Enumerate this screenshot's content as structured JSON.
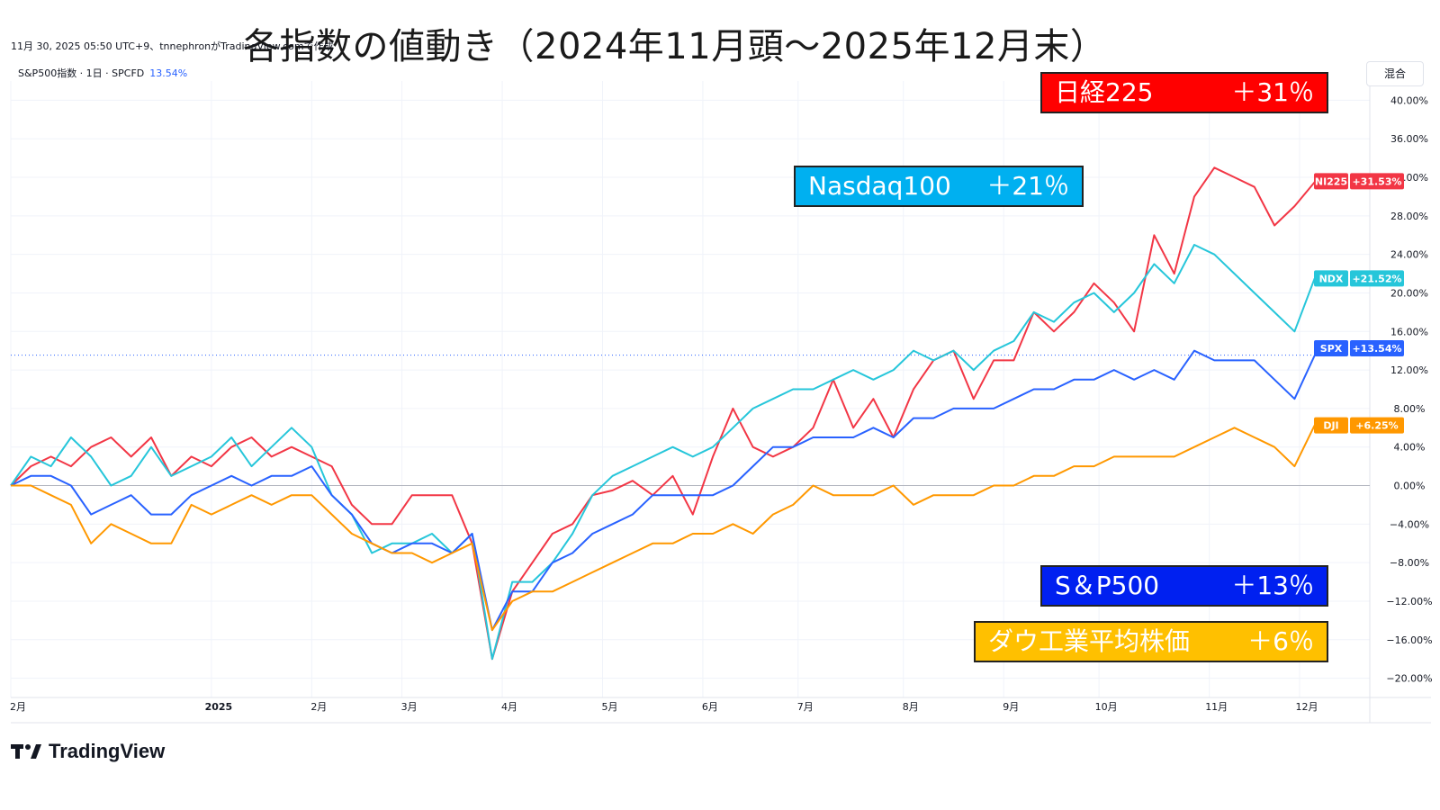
{
  "title": "各指数の値動き（2024年11月頭〜2025年12月末）",
  "meta": "11月 30, 2025 05:50 UTC+9、tnnephronがTradingView.comで作成",
  "legend": {
    "symbol": "S&P500指数 · 1日 · SPCFD",
    "value": "13.54%"
  },
  "mode_button": "混合",
  "callouts": {
    "nikkei": {
      "name": "日経225",
      "change": "＋31％",
      "bg": "#ff0000",
      "fg": "#ffffff"
    },
    "nasdaq": {
      "name": "Nasdaq100",
      "change": "＋21％",
      "bg": "#00b0f0",
      "fg": "#ffffff"
    },
    "sp500": {
      "name": "S＆P500",
      "change": "＋13％",
      "bg": "#0020f0",
      "fg": "#ffffff"
    },
    "dow": {
      "name": "ダウ工業平均株価",
      "change": "＋6％",
      "bg": "#ffc000",
      "fg": "#ffffff"
    }
  },
  "branding": "TradingView",
  "chart_data": {
    "type": "line",
    "y_unit": "%",
    "ylim": [
      -22,
      42
    ],
    "y_ticks": [
      "40.00%",
      "36.00%",
      "32.00%",
      "28.00%",
      "24.00%",
      "20.00%",
      "16.00%",
      "12.00%",
      "8.00%",
      "4.00%",
      "0.00%",
      "−4.00%",
      "−8.00%",
      "−12.00%",
      "−16.00%",
      "−20.00%"
    ],
    "x_ticks": [
      {
        "label": "2月",
        "m": 0.0
      },
      {
        "label": "2025",
        "m": 2.0
      },
      {
        "label": "2月",
        "m": 3.0
      },
      {
        "label": "3月",
        "m": 3.9
      },
      {
        "label": "4月",
        "m": 4.9
      },
      {
        "label": "5月",
        "m": 5.9
      },
      {
        "label": "6月",
        "m": 6.9
      },
      {
        "label": "7月",
        "m": 7.85
      },
      {
        "label": "8月",
        "m": 8.9
      },
      {
        "label": "9月",
        "m": 9.9
      },
      {
        "label": "10月",
        "m": 10.85
      },
      {
        "label": "11月",
        "m": 11.95
      },
      {
        "label": "12月",
        "m": 12.85
      }
    ],
    "xlim": [
      0,
      13.55
    ],
    "grid": true,
    "reference_line": 13.54,
    "series": [
      {
        "name": "NI225",
        "color": "#f23645",
        "last_label": "+31.53%",
        "x": [
          0,
          0.2,
          0.4,
          0.6,
          0.8,
          1.0,
          1.2,
          1.4,
          1.6,
          1.8,
          2.0,
          2.2,
          2.4,
          2.6,
          2.8,
          3.0,
          3.2,
          3.4,
          3.6,
          3.8,
          4.0,
          4.2,
          4.4,
          4.6,
          4.8,
          5.0,
          5.2,
          5.4,
          5.6,
          5.8,
          6.0,
          6.2,
          6.4,
          6.6,
          6.8,
          7.0,
          7.2,
          7.4,
          7.6,
          7.8,
          8.0,
          8.2,
          8.4,
          8.6,
          8.8,
          9.0,
          9.2,
          9.4,
          9.6,
          9.8,
          10.0,
          10.2,
          10.4,
          10.6,
          10.8,
          11.0,
          11.2,
          11.4,
          11.6,
          11.8,
          12.0,
          12.2,
          12.4,
          12.6,
          12.8,
          13.0
        ],
        "y": [
          0,
          2,
          3,
          2,
          4,
          5,
          3,
          5,
          1,
          3,
          2,
          4,
          5,
          3,
          4,
          3,
          2,
          -2,
          -4,
          -4,
          -1,
          -1,
          -1,
          -6,
          -18,
          -11,
          -8,
          -5,
          -4,
          -1,
          -0.5,
          0.5,
          -1,
          1,
          -3,
          3,
          8,
          4,
          3,
          4,
          6,
          11,
          6,
          9,
          5,
          10,
          13,
          14,
          9,
          13,
          13,
          18,
          16,
          18,
          21,
          19,
          16,
          26,
          22,
          30,
          33,
          32,
          31,
          27,
          29,
          31.5
        ]
      },
      {
        "name": "NDX",
        "color": "#26c6da",
        "last_label": "+21.52%",
        "x": [
          0,
          0.2,
          0.4,
          0.6,
          0.8,
          1.0,
          1.2,
          1.4,
          1.6,
          1.8,
          2.0,
          2.2,
          2.4,
          2.6,
          2.8,
          3.0,
          3.2,
          3.4,
          3.6,
          3.8,
          4.0,
          4.2,
          4.4,
          4.6,
          4.8,
          5.0,
          5.2,
          5.4,
          5.6,
          5.8,
          6.0,
          6.2,
          6.4,
          6.6,
          6.8,
          7.0,
          7.2,
          7.4,
          7.6,
          7.8,
          8.0,
          8.2,
          8.4,
          8.6,
          8.8,
          9.0,
          9.2,
          9.4,
          9.6,
          9.8,
          10.0,
          10.2,
          10.4,
          10.6,
          10.8,
          11.0,
          11.2,
          11.4,
          11.6,
          11.8,
          12.0,
          12.2,
          12.4,
          12.6,
          12.8,
          13.0
        ],
        "y": [
          0,
          3,
          2,
          5,
          3,
          0,
          1,
          4,
          1,
          2,
          3,
          5,
          2,
          4,
          6,
          4,
          -1,
          -3,
          -7,
          -6,
          -6,
          -5,
          -7,
          -5,
          -18,
          -10,
          -10,
          -8,
          -5,
          -1,
          1,
          2,
          3,
          4,
          3,
          4,
          6,
          8,
          9,
          10,
          10,
          11,
          12,
          11,
          12,
          14,
          13,
          14,
          12,
          14,
          15,
          18,
          17,
          19,
          20,
          18,
          20,
          23,
          21,
          25,
          24,
          22,
          20,
          18,
          16,
          21.5
        ]
      },
      {
        "name": "SPX",
        "color": "#2962ff",
        "last_label": "+13.54%",
        "x": [
          0,
          0.2,
          0.4,
          0.6,
          0.8,
          1.0,
          1.2,
          1.4,
          1.6,
          1.8,
          2.0,
          2.2,
          2.4,
          2.6,
          2.8,
          3.0,
          3.2,
          3.4,
          3.6,
          3.8,
          4.0,
          4.2,
          4.4,
          4.6,
          4.8,
          5.0,
          5.2,
          5.4,
          5.6,
          5.8,
          6.0,
          6.2,
          6.4,
          6.6,
          6.8,
          7.0,
          7.2,
          7.4,
          7.6,
          7.8,
          8.0,
          8.2,
          8.4,
          8.6,
          8.8,
          9.0,
          9.2,
          9.4,
          9.6,
          9.8,
          10.0,
          10.2,
          10.4,
          10.6,
          10.8,
          11.0,
          11.2,
          11.4,
          11.6,
          11.8,
          12.0,
          12.2,
          12.4,
          12.6,
          12.8,
          13.0
        ],
        "y": [
          0,
          1,
          1,
          0,
          -3,
          -2,
          -1,
          -3,
          -3,
          -1,
          0,
          1,
          0,
          1,
          1,
          2,
          -1,
          -3,
          -6,
          -7,
          -6,
          -6,
          -7,
          -5,
          -15,
          -11,
          -11,
          -8,
          -7,
          -5,
          -4,
          -3,
          -1,
          -1,
          -1,
          -1,
          0,
          2,
          4,
          4,
          5,
          5,
          5,
          6,
          5,
          7,
          7,
          8,
          8,
          8,
          9,
          10,
          10,
          11,
          11,
          12,
          11,
          12,
          11,
          14,
          13,
          13,
          13,
          11,
          9,
          13.5
        ]
      },
      {
        "name": "DJI",
        "color": "#ff9800",
        "last_label": "+6.25%",
        "x": [
          0,
          0.2,
          0.4,
          0.6,
          0.8,
          1.0,
          1.2,
          1.4,
          1.6,
          1.8,
          2.0,
          2.2,
          2.4,
          2.6,
          2.8,
          3.0,
          3.2,
          3.4,
          3.6,
          3.8,
          4.0,
          4.2,
          4.4,
          4.6,
          4.8,
          5.0,
          5.2,
          5.4,
          5.6,
          5.8,
          6.0,
          6.2,
          6.4,
          6.6,
          6.8,
          7.0,
          7.2,
          7.4,
          7.6,
          7.8,
          8.0,
          8.2,
          8.4,
          8.6,
          8.8,
          9.0,
          9.2,
          9.4,
          9.6,
          9.8,
          10.0,
          10.2,
          10.4,
          10.6,
          10.8,
          11.0,
          11.2,
          11.4,
          11.6,
          11.8,
          12.0,
          12.2,
          12.4,
          12.6,
          12.8,
          13.0
        ],
        "y": [
          0,
          0,
          -1,
          -2,
          -6,
          -4,
          -5,
          -6,
          -6,
          -2,
          -3,
          -2,
          -1,
          -2,
          -1,
          -1,
          -3,
          -5,
          -6,
          -7,
          -7,
          -8,
          -7,
          -6,
          -15,
          -12,
          -11,
          -11,
          -10,
          -9,
          -8,
          -7,
          -6,
          -6,
          -5,
          -5,
          -4,
          -5,
          -3,
          -2,
          0,
          -1,
          -1,
          -1,
          0,
          -2,
          -1,
          -1,
          -1,
          0,
          0,
          1,
          1,
          2,
          2,
          3,
          3,
          3,
          3,
          4,
          5,
          6,
          5,
          4,
          2,
          6.25
        ]
      }
    ]
  }
}
